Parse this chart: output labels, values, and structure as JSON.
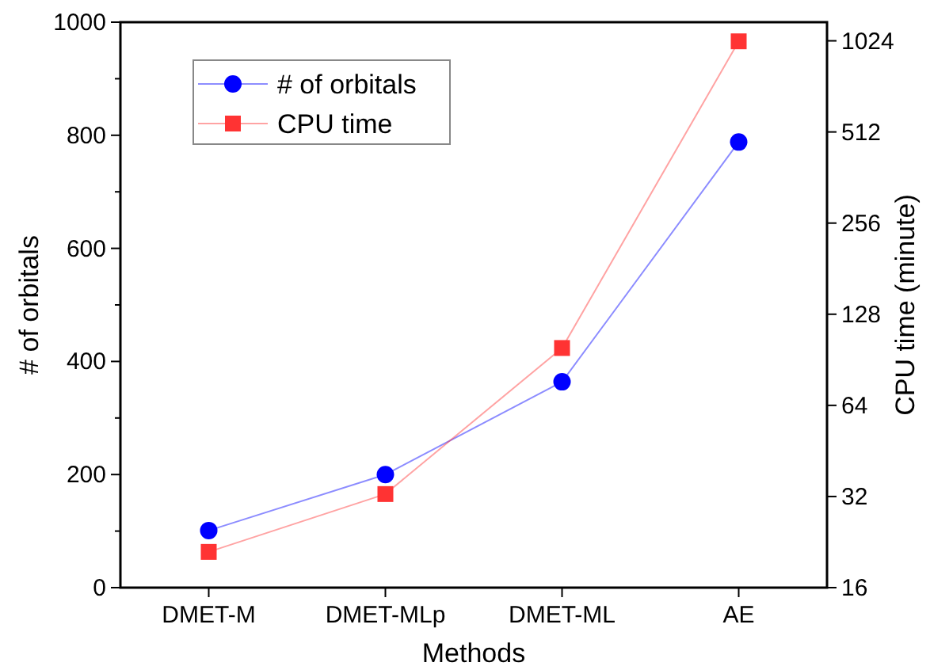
{
  "chart_data": {
    "type": "line",
    "xlabel": "Methods",
    "ylabel": "# of orbitals",
    "y2label": "CPU time (minute)",
    "categories": [
      "DMET-M",
      "DMET-MLp",
      "DMET-ML",
      "AE"
    ],
    "series": [
      {
        "name": "# of orbitals",
        "color": "#0000ff",
        "values": [
          101,
          200,
          364,
          788
        ],
        "marker": "circle"
      },
      {
        "name": "CPU time",
        "color": "#ff3333",
        "values": [
          21,
          32.6,
          99,
          1020
        ],
        "axis": "y2",
        "marker": "square"
      }
    ],
    "ylim": [
      0,
      1000
    ],
    "yticks": [
      0,
      {
        "value": 100,
        "label": null
      },
      200,
      {
        "value": 300,
        "label": null
      },
      400,
      {
        "value": 500,
        "label": null
      },
      600,
      {
        "value": 700,
        "label": null
      },
      800,
      {
        "value": 900,
        "label": null
      },
      1000
    ],
    "y2lim": [
      16,
      1180
    ],
    "y2ticks": [
      16,
      32,
      64,
      128,
      256,
      512,
      1024
    ],
    "log": "y2",
    "legend": "top left",
    "grid": false
  }
}
